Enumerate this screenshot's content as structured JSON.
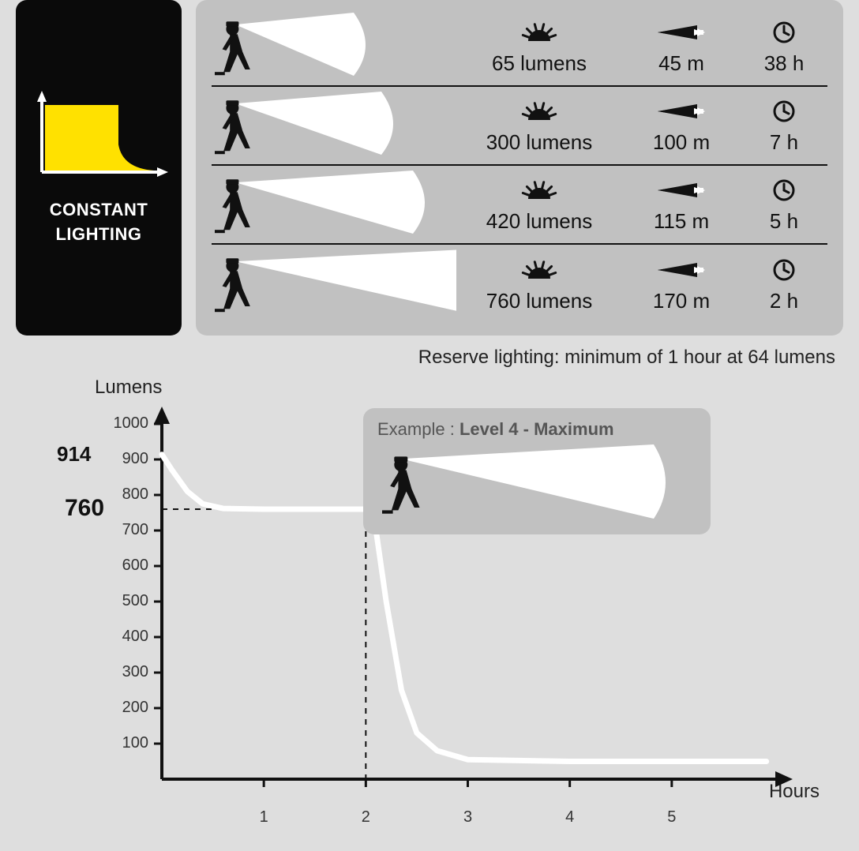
{
  "constant": {
    "label_line1": "CONSTANT",
    "label_line2": "LIGHTING"
  },
  "table": {
    "lumens_unit": "lumens",
    "distance_unit": "m",
    "time_unit": "h",
    "rows": [
      {
        "beam_width": 150,
        "lumens": "65",
        "distance": "45",
        "time": "38"
      },
      {
        "beam_width": 185,
        "lumens": "300",
        "distance": "100",
        "time": "7"
      },
      {
        "beam_width": 225,
        "lumens": "420",
        "distance": "115",
        "time": "5"
      },
      {
        "beam_width": 290,
        "lumens": "760",
        "distance": "170",
        "time": "2"
      }
    ]
  },
  "reserve_note": "Reserve lighting: minimum of 1 hour at 64 lumens",
  "chart": {
    "ylabel": "Lumens",
    "xlabel": "Hours",
    "y_ticks": [
      100,
      200,
      300,
      400,
      500,
      600,
      700,
      800,
      900,
      1000
    ],
    "x_ticks": [
      1,
      2,
      3,
      4,
      5
    ],
    "callout_914": "914",
    "callout_760": "760",
    "line_color": "#ffffff",
    "axis_color": "#111111",
    "grid_bg": "#dedede",
    "dashed_ref_x": 2,
    "dashed_ref_y": 760,
    "curve_points": [
      [
        0,
        914
      ],
      [
        0.1,
        870
      ],
      [
        0.25,
        810
      ],
      [
        0.4,
        775
      ],
      [
        0.6,
        762
      ],
      [
        1.0,
        760
      ],
      [
        2.0,
        760
      ],
      [
        2.1,
        700
      ],
      [
        2.2,
        500
      ],
      [
        2.35,
        250
      ],
      [
        2.5,
        130
      ],
      [
        2.7,
        80
      ],
      [
        3.0,
        55
      ],
      [
        4.0,
        50
      ],
      [
        5.0,
        50
      ],
      [
        5.9,
        50
      ]
    ],
    "tail_dash_start_x": 5.2
  },
  "example": {
    "prefix": "Example : ",
    "bold": "Level 4 - Maximum",
    "beam_width": 320
  },
  "colors": {
    "panel_dark": "#0a0a0a",
    "panel_gray": "#c1c1c1",
    "page_bg": "#dedede",
    "yellow": "#ffe100",
    "white": "#ffffff",
    "black": "#111111"
  },
  "typography": {
    "base_font": "Arial",
    "value_fontsize": 26,
    "label_fontsize": 22,
    "tick_fontsize": 20
  }
}
